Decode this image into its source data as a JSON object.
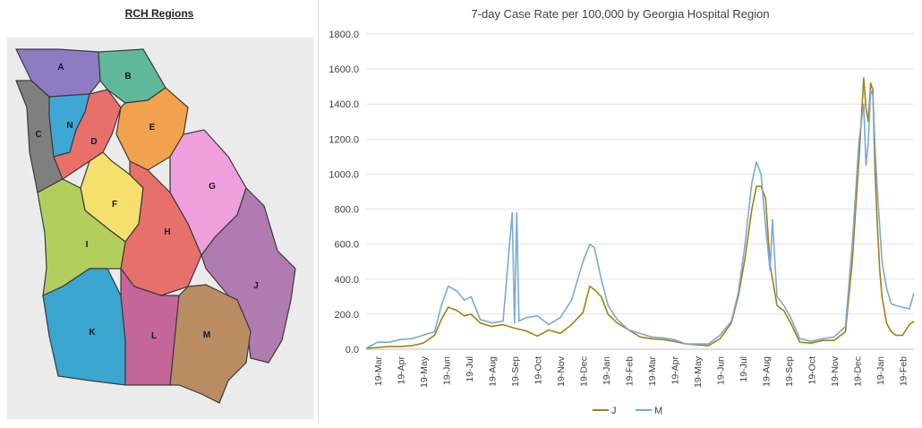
{
  "map": {
    "title": "RCH Regions",
    "regions": [
      {
        "label": "A",
        "color": "#8e7cc3"
      },
      {
        "label": "B",
        "color": "#5fb89a"
      },
      {
        "label": "C",
        "color": "#7f7f7f"
      },
      {
        "label": "N",
        "color": "#3fa7d6"
      },
      {
        "label": "D",
        "color": "#e8706a"
      },
      {
        "label": "E",
        "color": "#f2a24c"
      },
      {
        "label": "F",
        "color": "#f5e06e"
      },
      {
        "label": "G",
        "color": "#ef9fdc"
      },
      {
        "label": "H",
        "color": "#e8706a"
      },
      {
        "label": "I",
        "color": "#b2cf5e"
      },
      {
        "label": "J",
        "color": "#b07bb0"
      },
      {
        "label": "K",
        "color": "#3aa5cf"
      },
      {
        "label": "L",
        "color": "#c4669a"
      },
      {
        "label": "M",
        "color": "#b98c62"
      }
    ]
  },
  "chart_data": {
    "type": "line",
    "title": "7-day Case Rate per 100,000 by Georgia Hospital Region",
    "xlabel": "",
    "ylabel": "",
    "ylim": [
      0,
      1800
    ],
    "yticks": [
      "0.0",
      "200.0",
      "400.0",
      "600.0",
      "800.0",
      "1000.0",
      "1200.0",
      "1400.0",
      "1600.0",
      "1800.0"
    ],
    "xticks": [
      "19-Mar",
      "19-Apr",
      "19-May",
      "19-Jun",
      "19-Jul",
      "19-Aug",
      "19-Sep",
      "19-Oct",
      "19-Nov",
      "19-Dec",
      "19-Jan",
      "19-Feb",
      "19-Mar",
      "19-Apr",
      "19-May",
      "19-Jun",
      "19-Jul",
      "19-Aug",
      "19-Sep",
      "19-Oct",
      "19-Nov",
      "19-Dec",
      "19-Jan",
      "19-Feb"
    ],
    "grid": true,
    "legend": "bottom",
    "series": [
      {
        "name": "J",
        "color": "#a0820e",
        "x": [
          0,
          0.5,
          1,
          1.5,
          2,
          2.5,
          3,
          3.3,
          3.6,
          4,
          4.3,
          4.6,
          5,
          5.5,
          6,
          6.5,
          7,
          7.5,
          8,
          8.5,
          9,
          9.5,
          9.8,
          10,
          10.3,
          10.6,
          11,
          11.5,
          12,
          12.5,
          13,
          13.5,
          14,
          14.5,
          15,
          15.5,
          16,
          16.3,
          16.6,
          16.9,
          17.1,
          17.3,
          17.5,
          17.7,
          18,
          18.3,
          18.6,
          19,
          19.5,
          20,
          20.5,
          21,
          21.3,
          21.6,
          21.8,
          21.9,
          22,
          22.1,
          22.2,
          22.3,
          22.4,
          22.5,
          22.6,
          22.8,
          23,
          23.2,
          23.5,
          23.8,
          24
        ],
        "y": [
          5,
          10,
          15,
          15,
          20,
          35,
          80,
          170,
          240,
          220,
          190,
          200,
          150,
          130,
          140,
          120,
          105,
          75,
          110,
          90,
          140,
          210,
          360,
          340,
          300,
          200,
          150,
          110,
          70,
          60,
          55,
          45,
          30,
          25,
          20,
          60,
          150,
          300,
          520,
          800,
          930,
          930,
          860,
          480,
          250,
          220,
          150,
          40,
          35,
          50,
          50,
          100,
          500,
          1100,
          1550,
          1380,
          1300,
          1520,
          1480,
          1000,
          700,
          450,
          300,
          150,
          100,
          80,
          80,
          140,
          160
        ]
      },
      {
        "name": "M",
        "color": "#7aaad5",
        "x": [
          0,
          0.5,
          1,
          1.5,
          2,
          2.5,
          3,
          3.3,
          3.6,
          4,
          4.3,
          4.6,
          5,
          5.5,
          6,
          6.4,
          6.5,
          6.6,
          6.7,
          7,
          7.5,
          8,
          8.5,
          9,
          9.5,
          9.8,
          10,
          10.3,
          10.6,
          11,
          11.5,
          12,
          12.5,
          13,
          13.5,
          14,
          14.5,
          15,
          15.5,
          16,
          16.3,
          16.6,
          16.9,
          17.1,
          17.3,
          17.5,
          17.7,
          17.8,
          18,
          18.3,
          18.6,
          19,
          19.5,
          20,
          20.5,
          21,
          21.3,
          21.6,
          21.8,
          21.9,
          22,
          22.1,
          22.2,
          22.3,
          22.4,
          22.5,
          22.6,
          22.8,
          23,
          23.2,
          23.5,
          23.8,
          24
        ],
        "y": [
          5,
          40,
          40,
          55,
          60,
          80,
          100,
          250,
          360,
          330,
          280,
          300,
          170,
          150,
          160,
          780,
          150,
          780,
          160,
          180,
          190,
          140,
          180,
          280,
          500,
          600,
          580,
          400,
          250,
          170,
          110,
          90,
          70,
          65,
          55,
          30,
          30,
          30,
          80,
          160,
          320,
          600,
          950,
          1070,
          1000,
          700,
          450,
          740,
          300,
          250,
          180,
          60,
          45,
          60,
          70,
          130,
          600,
          1200,
          1400,
          1050,
          1180,
          1480,
          1450,
          1150,
          900,
          700,
          500,
          350,
          260,
          250,
          240,
          230,
          320
        ]
      }
    ]
  }
}
